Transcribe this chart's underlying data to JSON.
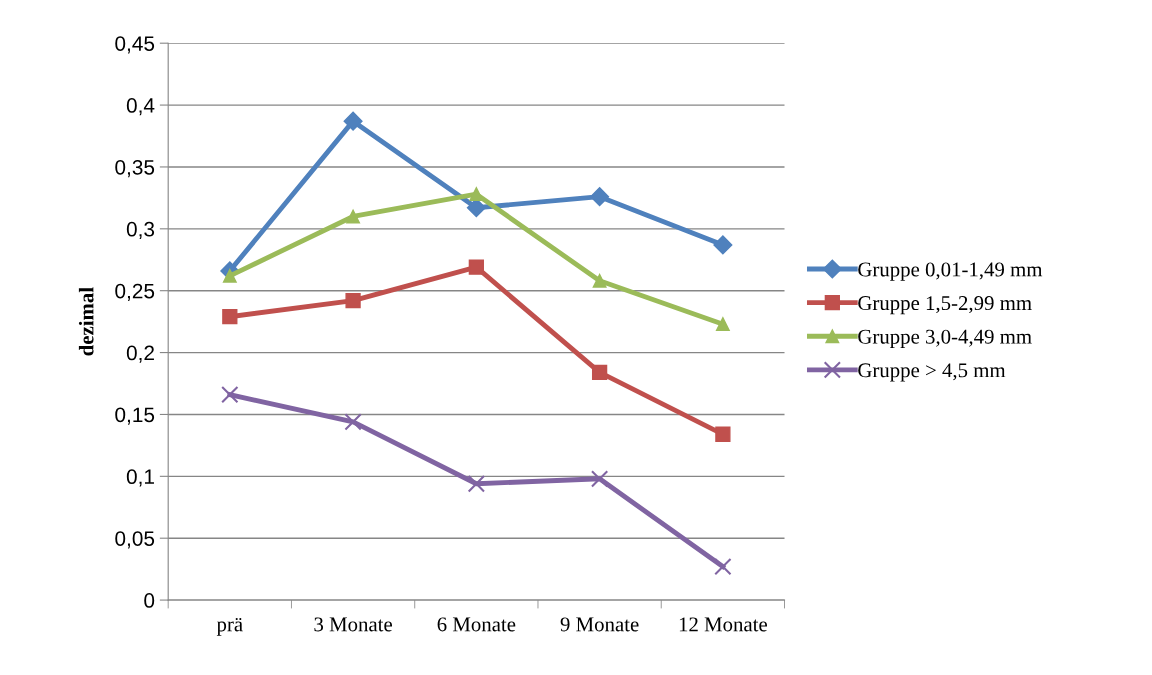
{
  "chart_data": {
    "type": "line",
    "ylabel": "dezimal",
    "categories": [
      "prä",
      "3 Monate",
      "6 Monate",
      "9 Monate",
      "12 Monate"
    ],
    "series": [
      {
        "name": "Gruppe 0,01-1,49 mm",
        "color": "#4f81bd",
        "marker": "diamond",
        "values": [
          0.266,
          0.387,
          0.317,
          0.326,
          0.287
        ]
      },
      {
        "name": "Gruppe 1,5-2,99 mm",
        "color": "#c0504d",
        "marker": "square",
        "values": [
          0.229,
          0.242,
          0.269,
          0.184,
          0.134
        ]
      },
      {
        "name": "Gruppe 3,0-4,49 mm",
        "color": "#9bbb59",
        "marker": "triangle",
        "values": [
          0.262,
          0.31,
          0.328,
          0.258,
          0.223
        ]
      },
      {
        "name": "Gruppe > 4,5 mm",
        "color": "#8064a2",
        "marker": "cross",
        "values": [
          0.166,
          0.144,
          0.094,
          0.098,
          0.027
        ]
      }
    ],
    "ylim": [
      0,
      0.45
    ],
    "yticks": [
      {
        "value": 0,
        "label": "0"
      },
      {
        "value": 0.05,
        "label": "0,05"
      },
      {
        "value": 0.1,
        "label": "0,1"
      },
      {
        "value": 0.15,
        "label": "0,15"
      },
      {
        "value": 0.2,
        "label": "0,2"
      },
      {
        "value": 0.25,
        "label": "0,25"
      },
      {
        "value": 0.3,
        "label": "0,3"
      },
      {
        "value": 0.35,
        "label": "0,35"
      },
      {
        "value": 0.4,
        "label": "0,4"
      },
      {
        "value": 0.45,
        "label": "0,45"
      }
    ],
    "grid": "y",
    "legend": "right",
    "line_style": "solid"
  }
}
